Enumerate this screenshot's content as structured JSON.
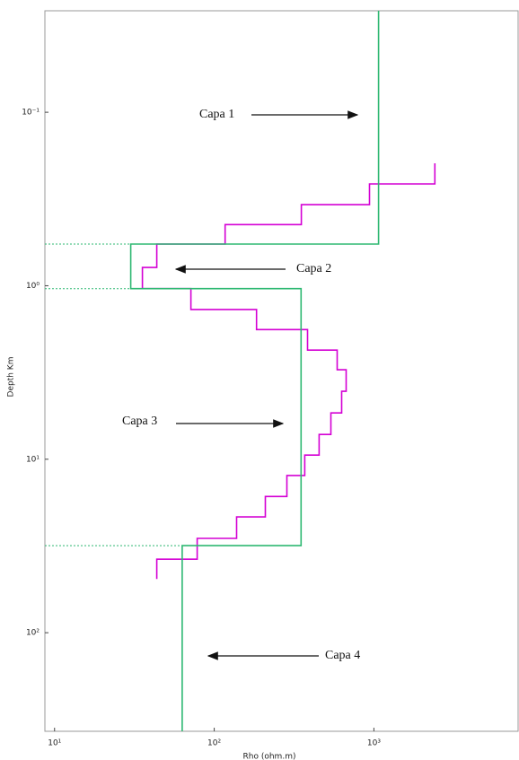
{
  "chart_data": {
    "type": "step",
    "x_label": "Rho (ohm.m)",
    "y_label": "Depth Km",
    "log_x": true,
    "log_y": true,
    "y_inverted": true,
    "xlim": [
      8.7,
      8000
    ],
    "ylim": [
      0.026,
      370
    ],
    "xticks": [
      {
        "value": 10,
        "label": "10¹"
      },
      {
        "value": 100,
        "label": "10²"
      },
      {
        "value": 1000,
        "label": "10³"
      }
    ],
    "yticks": [
      {
        "value": 0.1,
        "label": "10⁻¹"
      },
      {
        "value": 1,
        "label": "10⁰"
      },
      {
        "value": 10,
        "label": "10¹"
      },
      {
        "value": 100,
        "label": "10²"
      }
    ],
    "series": [
      {
        "color": "#d400d4",
        "x": [
          2410,
          2410,
          938,
          938,
          351,
          351,
          117,
          117,
          43.7,
          43.7,
          35.5,
          35.5,
          71.4,
          71.4,
          184,
          184,
          384,
          384,
          589,
          589,
          670,
          670,
          628,
          628,
          538,
          538,
          454,
          454,
          369,
          369,
          285,
          285,
          209,
          209,
          138,
          138,
          78.2,
          78.2,
          43.7,
          43.7
        ],
        "values": [
          0.197,
          0.259,
          0.259,
          0.341,
          0.341,
          0.444,
          0.444,
          0.575,
          0.575,
          0.785,
          0.785,
          1.04,
          1.04,
          1.37,
          1.37,
          1.79,
          1.79,
          2.35,
          2.35,
          3.05,
          3.05,
          4.06,
          4.06,
          5.41,
          5.41,
          7.2,
          7.2,
          9.47,
          9.47,
          12.4,
          12.4,
          16.4,
          16.4,
          21.5,
          21.5,
          28.6,
          28.6,
          37.7,
          37.7,
          49.0
        ]
      },
      {
        "color": "#2eb872",
        "x": [
          1070,
          1070,
          30,
          30,
          350,
          350,
          63,
          63
        ],
        "values": [
          0.026,
          0.575,
          0.575,
          1.04,
          1.04,
          31.5,
          31.5,
          370
        ]
      }
    ],
    "annotations": [
      "Capa 1",
      "Capa 2",
      "Capa 3",
      "Capa 4"
    ]
  }
}
